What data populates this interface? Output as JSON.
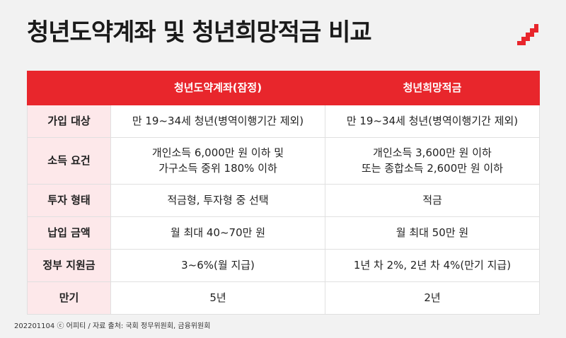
{
  "title": "청년도약계좌 및 청년희망적금 비교",
  "logo_icon": "staircase-logo-icon",
  "colors": {
    "accent": "#e8262c",
    "label_bg": "#fde8ea",
    "background": "#f2f2f2"
  },
  "table": {
    "headers": [
      "",
      "청년도약계좌(잠정)",
      "청년희망적금"
    ],
    "rows": [
      {
        "label": "가입 대상",
        "a": "만 19~34세 청년(병역이행기간 제외)",
        "b": "만 19~34세 청년(병역이행기간 제외)"
      },
      {
        "label": "소득 요건",
        "a": "개인소득 6,000만 원 이하 및\n가구소득 중위 180% 이하",
        "b": "개인소득 3,600만 원 이하\n또는 종합소득 2,600만 원 이하"
      },
      {
        "label": "투자 형태",
        "a": "적금형, 투자형 중 선택",
        "b": "적금"
      },
      {
        "label": "납입 금액",
        "a": "월 최대 40~70만 원",
        "b": "월 최대 50만 원"
      },
      {
        "label": "정부 지원금",
        "a": "3~6%(월 지급)",
        "b": "1년 차 2%, 2년 차 4%(만기 지급)"
      },
      {
        "label": "만기",
        "a": "5년",
        "b": "2년"
      }
    ]
  },
  "footer": "202201104 ⓒ 어피티 / 자료 출처: 국회 정무위원회, 금융위원회"
}
